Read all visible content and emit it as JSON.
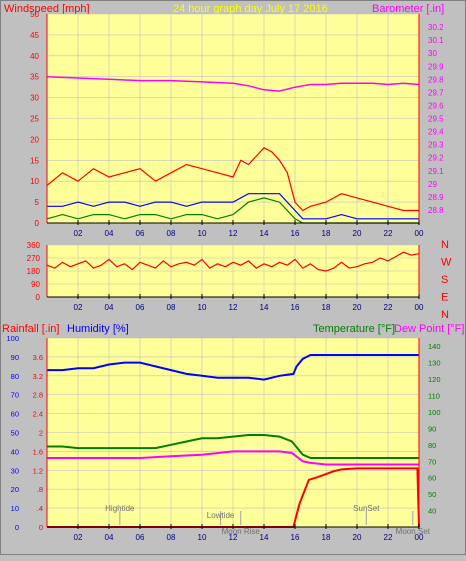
{
  "header": {
    "windspeed_label": "Windspeed [mph]",
    "title": "24 hour graph day   July 17 2016",
    "barometer_label": "Barometer [.in]"
  },
  "lower_header": {
    "rainfall_label": "Rainfall [.in]",
    "humidity_label": "Humidity [%]",
    "temperature_label": "Temperature [°F]",
    "dewpoint_label": "Dew Point [°F]"
  },
  "colors": {
    "background": "#c0c0c0",
    "plot_bg": "#ffff99",
    "axis_red": "#ff0000",
    "grid": "#c0c0c0",
    "wind_gust": "#ff0000",
    "wind_avg": "#0000ff",
    "wind_low": "#008000",
    "barometer": "#ff00ff",
    "humidity": "#0000ff",
    "temperature": "#008000",
    "dewpoint": "#ff00ff",
    "rainfall": "#ff0000",
    "label_yellow": "#ffff00",
    "label_magenta": "#ff00ff",
    "label_blue": "#0000ff",
    "label_green": "#008000",
    "label_red": "#ff0000"
  },
  "chart_data": [
    {
      "type": "line",
      "name": "wind_barometer",
      "x_ticks": [
        "02",
        "04",
        "06",
        "08",
        "10",
        "12",
        "14",
        "16",
        "18",
        "20",
        "22",
        "00"
      ],
      "xlim": [
        0,
        24
      ],
      "ylim_left": [
        0,
        50
      ],
      "y_ticks_left": [
        "0",
        "5",
        "10",
        "15",
        "20",
        "25",
        "30",
        "35",
        "40",
        "45",
        "50"
      ],
      "ylim_right": [
        28.7,
        30.3
      ],
      "y_ticks_right": [
        "28.8",
        "28.9",
        "29",
        "29.1",
        "29.2",
        "29.3",
        "29.4",
        "29.5",
        "29.6",
        "29.7",
        "29.8",
        "29.9",
        "30",
        "30.1",
        "30.2"
      ],
      "series": [
        {
          "key": "gust",
          "color": "#ff0000",
          "axis": "left",
          "x": [
            0,
            1,
            2,
            3,
            4,
            5,
            6,
            7,
            8,
            9,
            10,
            11,
            12,
            12.5,
            13,
            13.5,
            14,
            14.5,
            15,
            15.5,
            16,
            16.5,
            17,
            18,
            19,
            20,
            21,
            22,
            23,
            24
          ],
          "y": [
            9,
            12,
            10,
            13,
            11,
            12,
            13,
            10,
            12,
            14,
            13,
            12,
            11,
            15,
            14,
            16,
            18,
            17,
            15,
            12,
            5,
            3,
            4,
            5,
            7,
            6,
            5,
            4,
            3,
            3
          ]
        },
        {
          "key": "avg",
          "color": "#0000ff",
          "axis": "left",
          "x": [
            0,
            1,
            2,
            3,
            4,
            5,
            6,
            7,
            8,
            9,
            10,
            11,
            12,
            13,
            14,
            15,
            16,
            16.5,
            17,
            18,
            19,
            20,
            21,
            22,
            23,
            24
          ],
          "y": [
            4,
            4,
            5,
            4,
            5,
            5,
            4,
            5,
            5,
            4,
            5,
            5,
            5,
            7,
            7,
            7,
            3,
            1,
            1,
            1,
            2,
            1,
            1,
            1,
            1,
            1
          ]
        },
        {
          "key": "low",
          "color": "#008000",
          "axis": "left",
          "x": [
            0,
            1,
            2,
            3,
            4,
            5,
            6,
            7,
            8,
            9,
            10,
            11,
            12,
            13,
            14,
            15,
            16,
            16.5,
            17,
            20,
            24
          ],
          "y": [
            1,
            2,
            1,
            2,
            2,
            1,
            2,
            2,
            1,
            2,
            2,
            1,
            2,
            5,
            6,
            5,
            1,
            0,
            0,
            0,
            0
          ]
        },
        {
          "key": "barometer",
          "color": "#ff00ff",
          "axis": "right",
          "x": [
            0,
            2,
            4,
            6,
            8,
            10,
            12,
            13,
            14,
            15,
            16,
            17,
            18,
            19,
            20,
            21,
            22,
            23,
            24
          ],
          "y": [
            29.82,
            29.81,
            29.8,
            29.79,
            29.79,
            29.78,
            29.77,
            29.75,
            29.72,
            29.71,
            29.74,
            29.76,
            29.76,
            29.77,
            29.77,
            29.77,
            29.76,
            29.77,
            29.76
          ]
        }
      ]
    },
    {
      "type": "line",
      "name": "wind_direction",
      "x_ticks": [
        "02",
        "04",
        "06",
        "08",
        "10",
        "12",
        "14",
        "16",
        "18",
        "20",
        "22",
        "00"
      ],
      "xlim": [
        0,
        24
      ],
      "ylim": [
        0,
        360
      ],
      "y_ticks": [
        "0",
        "90",
        "180",
        "270",
        "360"
      ],
      "compass": [
        "N",
        "W",
        "S",
        "E",
        "N"
      ],
      "series": [
        {
          "key": "direction",
          "color": "#ff0000",
          "x": [
            0,
            0.5,
            1,
            1.5,
            2,
            2.5,
            3,
            3.5,
            4,
            4.5,
            5,
            5.5,
            6,
            6.5,
            7,
            7.5,
            8,
            8.5,
            9,
            9.5,
            10,
            10.5,
            11,
            11.5,
            12,
            12.5,
            13,
            13.5,
            14,
            14.5,
            15,
            15.5,
            16,
            16.5,
            17,
            17.5,
            18,
            18.5,
            19,
            19.5,
            20,
            20.5,
            21,
            21.5,
            22,
            22.5,
            23,
            23.5,
            24
          ],
          "y": [
            220,
            200,
            240,
            210,
            230,
            250,
            200,
            220,
            260,
            210,
            230,
            190,
            240,
            220,
            200,
            250,
            210,
            230,
            240,
            220,
            260,
            200,
            230,
            210,
            240,
            220,
            250,
            200,
            230,
            210,
            240,
            220,
            260,
            200,
            230,
            190,
            180,
            200,
            240,
            200,
            210,
            230,
            240,
            270,
            250,
            280,
            310,
            290,
            300
          ]
        }
      ]
    },
    {
      "type": "line",
      "name": "humidity_temperature",
      "x_ticks": [
        "02",
        "04",
        "06",
        "08",
        "10",
        "12",
        "14",
        "16",
        "18",
        "20",
        "22",
        "00"
      ],
      "xlim": [
        0,
        24
      ],
      "ylim_humidity": [
        0,
        100
      ],
      "y_ticks_humidity": [
        "0",
        "10",
        "20",
        "30",
        "40",
        "50",
        "60",
        "70",
        "80",
        "90",
        "100"
      ],
      "ylim_rain": [
        0,
        4.0
      ],
      "y_ticks_rain": [
        "0",
        ".4",
        ".8",
        "1.2",
        "1.6",
        "2",
        "2.4",
        "2.8",
        "3.2",
        "3.6"
      ],
      "ylim_temp": [
        30,
        145
      ],
      "y_ticks_temp": [
        "40",
        "50",
        "60",
        "70",
        "80",
        "90",
        "100",
        "110",
        "120",
        "130",
        "140"
      ],
      "annotations": [
        {
          "label": "Hightide",
          "x": 4.7
        },
        {
          "label": "Lowtide",
          "x": 11.2
        },
        {
          "label": "Moon Rise",
          "x": 12.5
        },
        {
          "label": "SunSet",
          "x": 20.6
        },
        {
          "label": "Moon Set",
          "x": 23.6
        }
      ],
      "series": [
        {
          "key": "humidity",
          "color": "#0000ff",
          "axis": "humidity",
          "x": [
            0,
            1,
            2,
            3,
            4,
            5,
            6,
            7,
            8,
            9,
            10,
            11,
            12,
            13,
            14,
            15,
            15.9,
            16.1,
            16.5,
            17,
            18,
            20,
            22,
            24
          ],
          "y": [
            83,
            83,
            84,
            84,
            86,
            87,
            87,
            85,
            83,
            81,
            80,
            79,
            79,
            79,
            78,
            80,
            81,
            85,
            89,
            91,
            91,
            91,
            91,
            91
          ]
        },
        {
          "key": "temperature",
          "color": "#008000",
          "axis": "temp",
          "x": [
            0,
            1,
            2,
            3,
            4,
            5,
            6,
            7,
            8,
            9,
            10,
            11,
            12,
            13,
            14,
            15,
            15.8,
            16.5,
            17,
            18,
            20,
            22,
            24
          ],
          "y": [
            79,
            79,
            78,
            78,
            78,
            78,
            78,
            78,
            80,
            82,
            84,
            84,
            85,
            86,
            86,
            85,
            82,
            74,
            72,
            72,
            72,
            72,
            72
          ]
        },
        {
          "key": "dewpoint",
          "color": "#ff00ff",
          "axis": "temp",
          "x": [
            0,
            2,
            4,
            6,
            8,
            10,
            12,
            14,
            15,
            15.8,
            16.5,
            17,
            18,
            20,
            22,
            24
          ],
          "y": [
            72,
            72,
            72,
            72,
            73,
            74,
            76,
            76,
            76,
            75,
            70,
            69,
            68,
            68,
            68,
            68
          ]
        },
        {
          "key": "rainfall",
          "color": "#ff0000",
          "axis": "rain",
          "x": [
            0,
            15.9,
            16.3,
            16.9,
            17.4,
            18,
            18.5,
            19,
            20,
            22,
            23.9,
            24
          ],
          "y": [
            0,
            0,
            0.5,
            1.0,
            1.05,
            1.12,
            1.18,
            1.22,
            1.24,
            1.24,
            1.24,
            0
          ]
        }
      ]
    }
  ]
}
